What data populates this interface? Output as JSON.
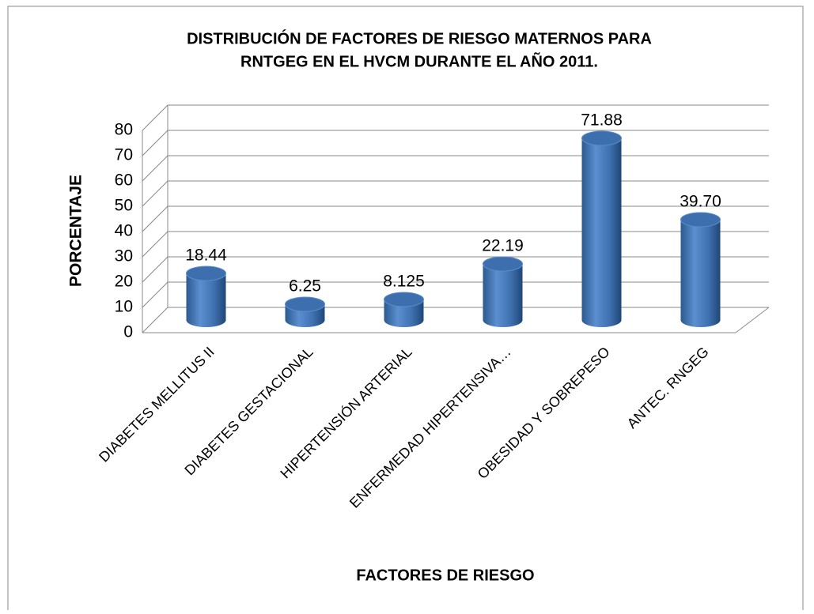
{
  "chart_data": {
    "type": "bar3d",
    "title": [
      "DISTRIBUCIÓN DE FACTORES DE RIESGO MATERNOS PARA",
      "RNTGEG EN EL HVCM DURANTE EL AÑO 2011."
    ],
    "x_label": "FACTORES DE RIESGO",
    "y_label": "PORCENTAJE",
    "categories": [
      "DIABETES MELLITUS II",
      "DIABETES GESTACIONAL",
      "HIPERTENSIÓN ARTERIAL",
      "ENFERMEDAD HIPERTENSIVA…",
      "OBESIDAD Y SOBREPESO",
      "ANTEC. RNGEG"
    ],
    "values": [
      18.44,
      6.25,
      8.125,
      22.19,
      71.88,
      39.7
    ],
    "value_labels": [
      "18.44",
      "6.25",
      "8.125",
      "22.19",
      "71.88",
      "39.70"
    ],
    "color": "#4f81bd",
    "ylim": [
      0,
      80
    ],
    "yticks": [
      0,
      10,
      20,
      30,
      40,
      50,
      60,
      70,
      80
    ],
    "grid": true
  }
}
